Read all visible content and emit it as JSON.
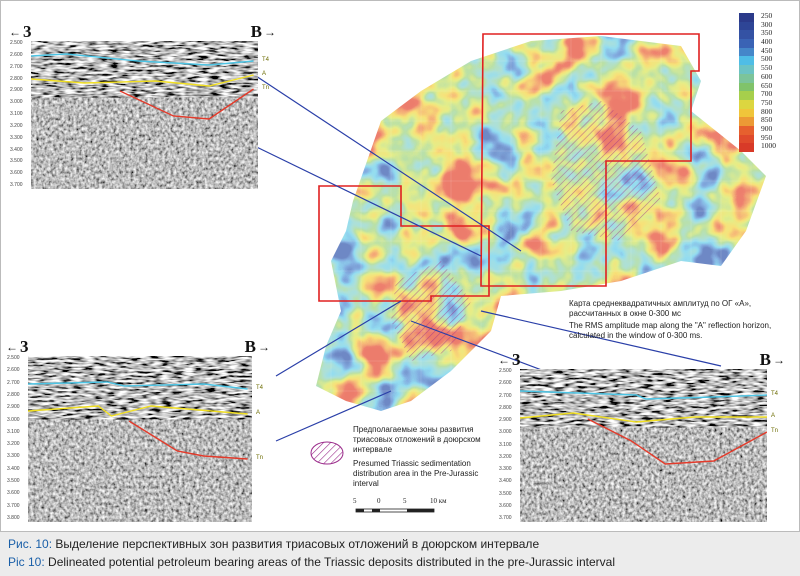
{
  "map": {
    "legend": [
      {
        "value": "250",
        "color": "#2b3a8a"
      },
      {
        "value": "300",
        "color": "#2e4596"
      },
      {
        "value": "350",
        "color": "#3452a4"
      },
      {
        "value": "400",
        "color": "#3a63b5"
      },
      {
        "value": "450",
        "color": "#4587c9"
      },
      {
        "value": "500",
        "color": "#4fbde6"
      },
      {
        "value": "550",
        "color": "#6cc3c4"
      },
      {
        "value": "600",
        "color": "#7cc49a"
      },
      {
        "value": "650",
        "color": "#80c36a"
      },
      {
        "value": "700",
        "color": "#a6cf4c"
      },
      {
        "value": "750",
        "color": "#dcd640"
      },
      {
        "value": "800",
        "color": "#f0c53a"
      },
      {
        "value": "850",
        "color": "#ec9a35"
      },
      {
        "value": "900",
        "color": "#e6602e"
      },
      {
        "value": "950",
        "color": "#df4a2c"
      },
      {
        "value": "1000",
        "color": "#d83a28"
      }
    ],
    "title_ru": "Карта среднеквадратичных амплитуд по ОГ «А», рассчитанных в окне 0-300 мс",
    "title_en": "The RMS amplitude map along the \"A\" reflection horizon, calculated in the window of 0-300 ms.",
    "zone_legend_ru": "Предполагаемые зоны развития триасовых отложений в доюрском интервале",
    "zone_legend_en": "Presumed Triassic sedimentation distribution area in the Pre-Jurassic interval",
    "scale": {
      "labels": [
        "5",
        "0",
        "5",
        "10 км"
      ]
    }
  },
  "sections": [
    {
      "left": "3",
      "right": "B",
      "ticks": [
        "2.500",
        "2.600",
        "2.700",
        "2.800",
        "2.900",
        "3.000",
        "3.100",
        "3.200",
        "3.300",
        "3.400",
        "3.500",
        "3.600",
        "3.700"
      ],
      "horizons": [
        "T4",
        "A",
        "Tn"
      ]
    },
    {
      "left": "3",
      "right": "B",
      "ticks": [
        "2.500",
        "2.600",
        "2.700",
        "2.800",
        "2.900",
        "3.000",
        "3.100",
        "3.200",
        "3.300",
        "3.400",
        "3.500",
        "3.600",
        "3.700",
        "3.800"
      ],
      "horizons": [
        "T4",
        "A",
        "Tn"
      ]
    },
    {
      "left": "3",
      "right": "B",
      "ticks": [
        "2.500",
        "2.600",
        "2.700",
        "2.800",
        "2.900",
        "3.000",
        "3.100",
        "3.200",
        "3.300",
        "3.400",
        "3.500",
        "3.600",
        "3.700"
      ],
      "horizons": [
        "T4",
        "A",
        "Tn"
      ]
    }
  ],
  "caption": {
    "ru_label": "Рис. 10:",
    "ru_text": " Выделение перспективных зон развития триасовых отложений в доюрском интервале",
    "en_label": "Pic 10:",
    "en_text": " Delineated potential petroleum bearing areas of the Triassic deposits distributed in the pre-Jurassic interval"
  },
  "colors": {
    "accent": "#1a5fa8",
    "horizon_t4": "#4cc4e4",
    "horizon_a": "#f2e022",
    "horizon_base": "#e43a2a",
    "link_line": "#2a3fa8",
    "outline": "#e02020"
  }
}
